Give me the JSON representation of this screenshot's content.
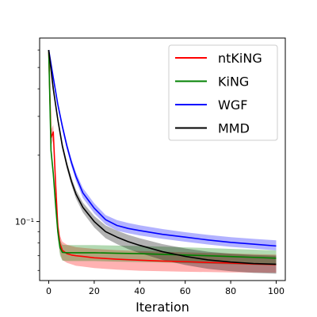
{
  "chart_data": {
    "type": "line",
    "title": "",
    "xlabel": "Iteration",
    "ylabel": "",
    "xlim": [
      -4,
      104
    ],
    "ylim": [
      0.054,
      0.68
    ],
    "yscale": "log",
    "grid": false,
    "legend_position": "top-right",
    "xticks": [
      0,
      20,
      40,
      60,
      80,
      100
    ],
    "xtick_labels": [
      "0",
      "20",
      "40",
      "60",
      "80",
      "100"
    ],
    "yticks": [
      0.1
    ],
    "ytick_labels": [
      "10⁻¹"
    ],
    "series": [
      {
        "name": "ntKiNG",
        "color": "#ff0000",
        "x": [
          0,
          1,
          2,
          3,
          4,
          5,
          6,
          8,
          10,
          12,
          15,
          20,
          30,
          40,
          50,
          60,
          70,
          80,
          90,
          100
        ],
        "y": [
          0.6,
          0.24,
          0.255,
          0.15,
          0.095,
          0.079,
          0.074,
          0.0715,
          0.0705,
          0.07,
          0.0695,
          0.0685,
          0.0675,
          0.0668,
          0.0662,
          0.0658,
          0.0652,
          0.0648,
          0.0642,
          0.0638
        ],
        "lower": [
          0.6,
          0.22,
          0.235,
          0.14,
          0.088,
          0.072,
          0.067,
          0.065,
          0.064,
          0.063,
          0.0625,
          0.0615,
          0.0605,
          0.0598,
          0.0595,
          0.0592,
          0.059,
          0.0588,
          0.0587,
          0.0586
        ],
        "upper": [
          0.6,
          0.26,
          0.275,
          0.165,
          0.103,
          0.086,
          0.081,
          0.0785,
          0.0775,
          0.0765,
          0.076,
          0.0752,
          0.0742,
          0.0735,
          0.073,
          0.0725,
          0.072,
          0.0716,
          0.0712,
          0.0708
        ]
      },
      {
        "name": "KiNG",
        "color": "#008000",
        "x": [
          0,
          1,
          2,
          3,
          4,
          5,
          6,
          8,
          10,
          12,
          15,
          20,
          30,
          40,
          50,
          60,
          70,
          80,
          90,
          100
        ],
        "y": [
          0.6,
          0.21,
          0.165,
          0.12,
          0.09,
          0.076,
          0.0725,
          0.0722,
          0.0722,
          0.0722,
          0.0722,
          0.0722,
          0.0718,
          0.0715,
          0.071,
          0.0705,
          0.07,
          0.0694,
          0.0688,
          0.0682
        ],
        "lower": [
          0.6,
          0.2,
          0.155,
          0.112,
          0.083,
          0.07,
          0.0665,
          0.0662,
          0.0662,
          0.0662,
          0.0662,
          0.0662,
          0.0658,
          0.0655,
          0.0652,
          0.0648,
          0.0644,
          0.064,
          0.0636,
          0.0632
        ],
        "upper": [
          0.6,
          0.22,
          0.175,
          0.128,
          0.097,
          0.082,
          0.0785,
          0.0782,
          0.0782,
          0.0782,
          0.0782,
          0.0782,
          0.0778,
          0.0775,
          0.077,
          0.0764,
          0.0758,
          0.0752,
          0.0746,
          0.074
        ]
      },
      {
        "name": "WGF",
        "color": "#0000ff",
        "x": [
          0,
          2,
          4,
          6,
          8,
          10,
          12,
          15,
          20,
          25,
          30,
          35,
          40,
          50,
          60,
          70,
          80,
          90,
          100
        ],
        "y": [
          0.6,
          0.45,
          0.34,
          0.27,
          0.22,
          0.185,
          0.16,
          0.135,
          0.115,
          0.102,
          0.096,
          0.093,
          0.091,
          0.0875,
          0.085,
          0.0825,
          0.0805,
          0.079,
          0.0775
        ],
        "lower": [
          0.6,
          0.44,
          0.33,
          0.26,
          0.212,
          0.178,
          0.153,
          0.128,
          0.109,
          0.097,
          0.091,
          0.0885,
          0.0865,
          0.0835,
          0.081,
          0.0787,
          0.0768,
          0.0754,
          0.074
        ],
        "upper": [
          0.6,
          0.46,
          0.35,
          0.28,
          0.228,
          0.192,
          0.167,
          0.142,
          0.121,
          0.107,
          0.1015,
          0.0985,
          0.0962,
          0.0925,
          0.0895,
          0.087,
          0.085,
          0.0835,
          0.0822
        ]
      },
      {
        "name": "MMD",
        "color": "#000000",
        "x": [
          0,
          2,
          4,
          6,
          8,
          10,
          12,
          15,
          20,
          25,
          30,
          35,
          40,
          50,
          60,
          70,
          80,
          90,
          100
        ],
        "y": [
          0.6,
          0.4,
          0.29,
          0.22,
          0.18,
          0.152,
          0.133,
          0.116,
          0.1,
          0.09,
          0.085,
          0.081,
          0.078,
          0.073,
          0.0695,
          0.067,
          0.0655,
          0.0645,
          0.064
        ],
        "lower": [
          0.6,
          0.39,
          0.28,
          0.212,
          0.173,
          0.146,
          0.127,
          0.11,
          0.094,
          0.084,
          0.079,
          0.075,
          0.072,
          0.067,
          0.0635,
          0.061,
          0.0595,
          0.0585,
          0.058
        ],
        "upper": [
          0.6,
          0.41,
          0.3,
          0.228,
          0.187,
          0.158,
          0.139,
          0.122,
          0.106,
          0.096,
          0.091,
          0.087,
          0.084,
          0.079,
          0.0755,
          0.073,
          0.0715,
          0.0705,
          0.07
        ]
      }
    ]
  }
}
